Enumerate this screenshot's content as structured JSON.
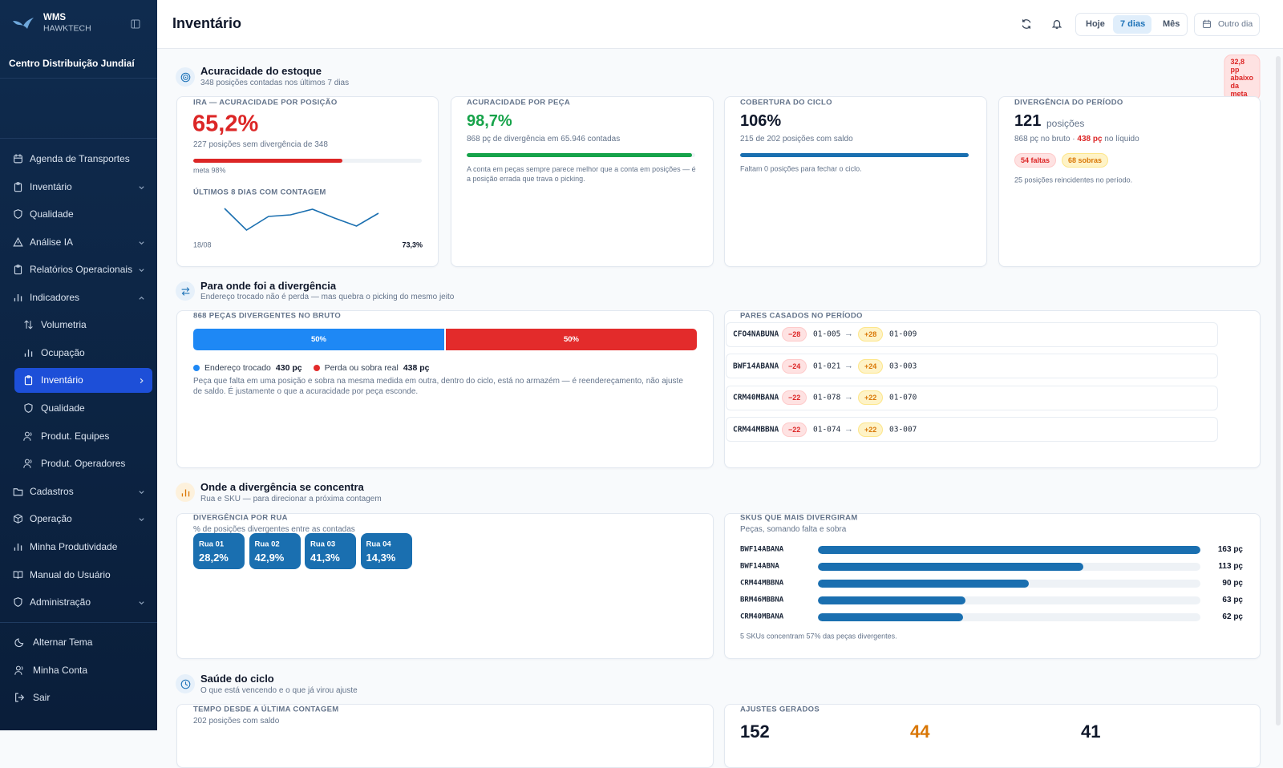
{
  "sidebar": {
    "brand": "WMS",
    "brand_sub": "HAWKTECH",
    "site": "Centro Distribuição Jundiaí",
    "menu": [
      "Agenda de Transportes",
      "Inventário",
      "Qualidade",
      "Análise IA",
      "Relatórios Operacionais",
      "Indicadores"
    ],
    "submenu": [
      "Volumetria",
      "Ocupação",
      "Inventário",
      "Qualidade",
      "Produt. Equipes",
      "Produt. Operadores"
    ],
    "menu_more": [
      "Cadastros",
      "Operação",
      "Minha Produtividade",
      "Manual do Usuário",
      "Administração"
    ],
    "footer": [
      "Alternar Tema",
      "Minha Conta",
      "Sair"
    ]
  },
  "header": {
    "title": "Inventário",
    "ranges": [
      "Hoje",
      "7 dias",
      "Mês"
    ],
    "other_day": "Outro dia"
  },
  "accuracy": {
    "title": "Acuracidade do estoque",
    "subtitle": "348 posições contadas nos últimos 7 dias",
    "badge": "32,8 pp abaixo da meta",
    "ira": {
      "label": "IRA — ACURACIDADE POR POSIÇÃO",
      "value": {
        "value": 65.2,
        "label": "65,2%"
      },
      "detail": "227 posições sem divergência de 348",
      "goal": "meta 98%",
      "trend": {
        "label": "ÚLTIMOS 8 DIAS COM CONTAGEM",
        "values": [
          77.5,
          58.6,
          70.5,
          71.9,
          76.8,
          69.1,
          62.1,
          73.3
        ],
        "start": "18/08",
        "end": "73,3%"
      }
    },
    "piece": {
      "label": "ACURACIDADE POR PEÇA",
      "value": {
        "value": 98.7,
        "label": "98,7%"
      },
      "detail": "868 pç de divergência em 65.946 contadas",
      "note": "A conta em peças sempre parece melhor que a conta em posições — é a posição errada que trava o picking."
    },
    "coverage": {
      "label": "COBERTURA DO CICLO",
      "value": {
        "value": 106,
        "label": "106%"
      },
      "detail": "215 de 202 posições com saldo",
      "note": "Faltam 0 posições para fechar o ciclo."
    },
    "divergence": {
      "label": "DIVERGÊNCIA DO PERÍODO",
      "value": "121",
      "unit": "posições",
      "detail": [
        "868 pç no bruto · ",
        "438 pç",
        " no líquido"
      ],
      "pills": [
        "54 faltas",
        "68 sobras"
      ],
      "note": "25 posições reincidentes no período."
    }
  },
  "where": {
    "title": "Para onde foi a divergência",
    "subtitle": "Endereço trocado não é perda — mas quebra o picking do mesmo jeito",
    "split": {
      "label": "868 PEÇAS DIVERGENTES NO BRUTO",
      "segments": [
        {
          "value": 50,
          "label": "50%",
          "name": "Endereço trocado",
          "amount": "430 pç"
        },
        {
          "value": 50,
          "label": "50%",
          "name": "Perda ou sobra real",
          "amount": "438 pç"
        }
      ],
      "note": "Peça que falta em uma posição e sobra na mesma medida em outra, dentro do ciclo, está no armazém — é reendereçamento, não ajuste de saldo. É justamente o que a acuracidade por peça esconde."
    },
    "pairs": {
      "label": "PARES CASADOS NO PERÍODO",
      "rows": [
        {
          "sku": "CFO4NABUNA",
          "out": "−28",
          "from": "01-005",
          "in": "+28",
          "to": "01-009"
        },
        {
          "sku": "BWF14ABANA",
          "out": "−24",
          "from": "01-021",
          "in": "+24",
          "to": "03-003"
        },
        {
          "sku": "CRM40MBANA",
          "out": "−22",
          "from": "01-078",
          "in": "+22",
          "to": "01-070"
        },
        {
          "sku": "CRM44MBBNA",
          "out": "−22",
          "from": "01-074",
          "in": "+22",
          "to": "03-007"
        }
      ]
    }
  },
  "concentration": {
    "title": "Onde a divergência se concentra",
    "subtitle": "Rua e SKU — para direcionar a próxima contagem",
    "streets": {
      "label": "DIVERGÊNCIA POR RUA",
      "subtitle": "% de posições divergentes entre as contadas",
      "items": [
        {
          "name": "Rua 01",
          "value": "28,2%"
        },
        {
          "name": "Rua 02",
          "value": "42,9%"
        },
        {
          "name": "Rua 03",
          "value": "41,3%"
        },
        {
          "name": "Rua 04",
          "value": "14,3%"
        }
      ]
    },
    "skus": {
      "label": "SKUS QUE MAIS DIVERGIRAM",
      "subtitle": "Peças, somando falta e sobra",
      "items": [
        {
          "name": "BWF14ABANA",
          "value": 163,
          "label": "163 pç"
        },
        {
          "name": "BWF14ABNA",
          "value": 113,
          "label": "113 pç"
        },
        {
          "name": "CRM44MBBNA",
          "value": 90,
          "label": "90 pç"
        },
        {
          "name": "BRM46MBBNA",
          "value": 63,
          "label": "63 pç"
        },
        {
          "name": "CRM40MBANA",
          "value": 62,
          "label": "62 pç"
        }
      ],
      "note": "5 SKUs concentram 57% das peças divergentes."
    }
  },
  "cycle": {
    "title": "Saúde do ciclo",
    "subtitle": "O que está vencendo e o que já virou ajuste",
    "age": {
      "label": "TEMPO DESDE A ÚLTIMA CONTAGEM",
      "subtitle": "202 posições com saldo"
    },
    "adjustments": {
      "label": "AJUSTES GERADOS",
      "values": [
        "152",
        "44",
        "41"
      ]
    }
  }
}
